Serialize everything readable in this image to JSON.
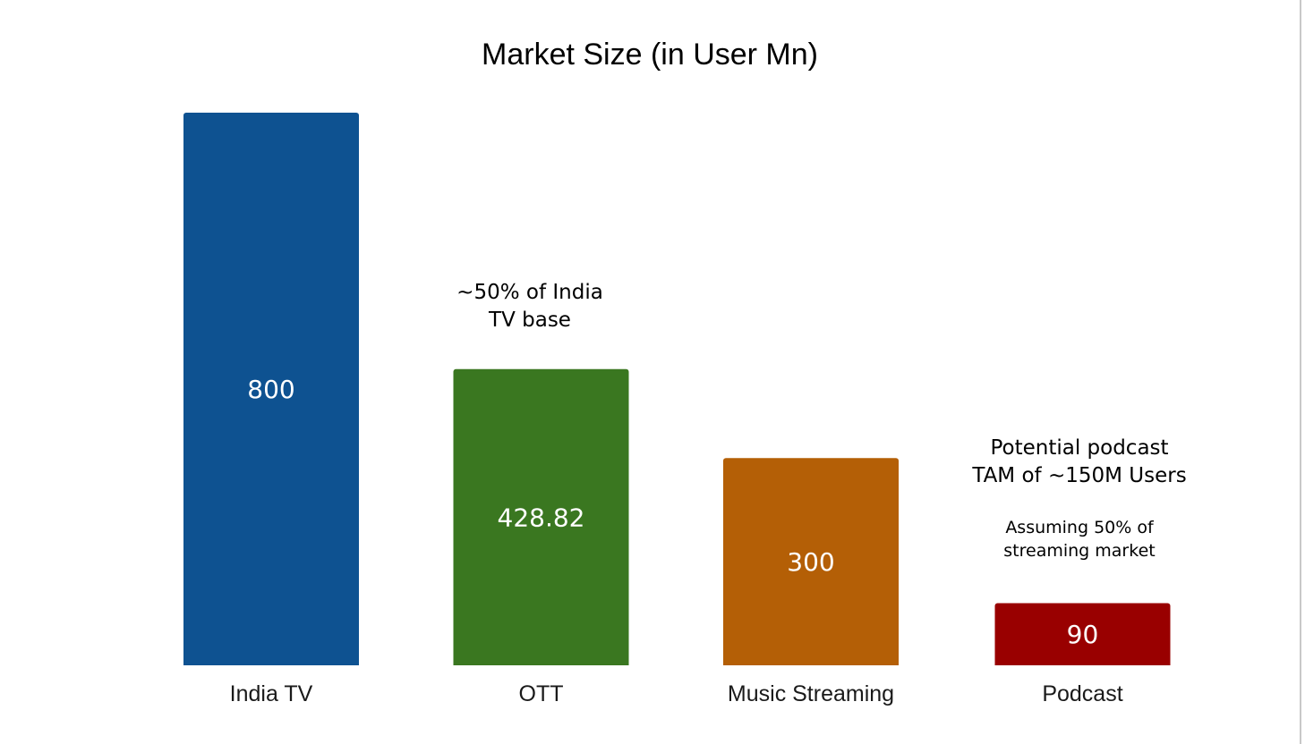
{
  "chart_data": {
    "type": "bar",
    "title": "Market Size (in User Mn)",
    "xlabel": "",
    "ylabel": "",
    "ylim": [
      0,
      800
    ],
    "grid": false,
    "legend": "none",
    "categories": [
      "India TV",
      "OTT",
      "Music Streaming",
      "Podcast"
    ],
    "values": [
      800,
      428.82,
      300,
      90
    ],
    "data_labels": [
      "800",
      "428.82",
      "300",
      "90"
    ],
    "colors": [
      "#0e5291",
      "#3a7720",
      "#b45f06",
      "#990000"
    ],
    "annotations": [
      {
        "name": "ott-note",
        "category": "OTT",
        "lines": [
          "~50% of India",
          "TV base"
        ]
      },
      {
        "name": "podcast-tam-note",
        "category": "Podcast",
        "lines": [
          "Potential podcast",
          "TAM of ~150M Users"
        ]
      },
      {
        "name": "podcast-assumption-note",
        "category": "Podcast",
        "lines": [
          "Assuming 50% of",
          "streaming market"
        ]
      }
    ]
  }
}
